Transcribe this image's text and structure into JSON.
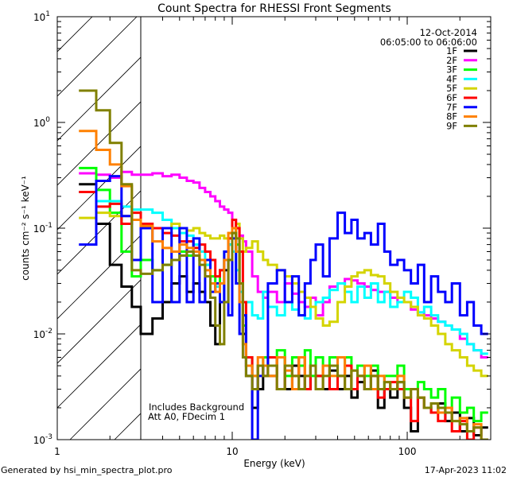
{
  "chart_data": {
    "type": "line",
    "title": "Count Spectra for RHESSI Front Segments",
    "xlabel": "Energy (keV)",
    "ylabel": "counts cm⁻² s⁻¹ keV⁻¹",
    "xscale": "log",
    "yscale": "log",
    "xlim": [
      1,
      300
    ],
    "ylim": [
      0.001,
      10
    ],
    "x_tick_labels": [
      "1",
      "10",
      "100"
    ],
    "y_tick_labels": [
      {
        "base": "10",
        "exp": "1"
      },
      {
        "base": "10",
        "exp": "0"
      },
      {
        "base": "10",
        "exp": "-1"
      },
      {
        "base": "10",
        "exp": "-2"
      },
      {
        "base": "10",
        "exp": "-3"
      }
    ],
    "legend_position": "top-right",
    "legend_header": [
      "12-Oct-2014",
      "06:05:00 to 06:06:00"
    ],
    "annotations": [
      "Includes Background",
      "Att A0, FDecim 1"
    ],
    "hatched_region_keV": [
      1,
      3
    ],
    "energy_edges": [
      1.33,
      1.67,
      2,
      2.33,
      2.67,
      3,
      3.5,
      4,
      4.5,
      5,
      5.5,
      6,
      6.5,
      7,
      7.5,
      8,
      8.5,
      9,
      9.5,
      10,
      10.5,
      11,
      11.5,
      12,
      13,
      14,
      15,
      16,
      18,
      20,
      22,
      24,
      26,
      28,
      30,
      33,
      36,
      40,
      44,
      48,
      52,
      57,
      62,
      68,
      74,
      80,
      88,
      96,
      105,
      115,
      125,
      137,
      150,
      165,
      180,
      200,
      220,
      240,
      265,
      290
    ],
    "series": [
      {
        "name": "1F",
        "color": "#000000",
        "values": [
          0.26,
          0.11,
          0.045,
          0.028,
          0.018,
          0.01,
          0.014,
          0.02,
          0.03,
          0.035,
          0.025,
          0.03,
          0.025,
          0.02,
          0.012,
          0.008,
          0.02,
          0.04,
          0.07,
          0.09,
          0.06,
          0.03,
          0.01,
          0.004,
          0.002,
          0.003,
          0.005,
          0.004,
          0.006,
          0.003,
          0.005,
          0.004,
          0.003,
          0.005,
          0.004,
          0.003,
          0.0045,
          0.003,
          0.004,
          0.0025,
          0.0035,
          0.003,
          0.0045,
          0.002,
          0.003,
          0.0025,
          0.0035,
          0.002,
          0.0012,
          0.0025,
          0.002,
          0.0018,
          0.0022,
          0.0015,
          0.0018,
          0.0012,
          0.0016,
          0.0011,
          0.0013
        ]
      },
      {
        "name": "2F",
        "color": "#ff00ff",
        "values": [
          0.33,
          0.32,
          0.3,
          0.34,
          0.32,
          0.32,
          0.33,
          0.31,
          0.32,
          0.3,
          0.28,
          0.27,
          0.24,
          0.22,
          0.2,
          0.18,
          0.16,
          0.15,
          0.14,
          0.12,
          0.1,
          0.085,
          0.075,
          0.06,
          0.035,
          0.025,
          0.022,
          0.025,
          0.02,
          0.03,
          0.024,
          0.02,
          0.018,
          0.022,
          0.015,
          0.02,
          0.028,
          0.03,
          0.033,
          0.032,
          0.03,
          0.028,
          0.026,
          0.025,
          0.025,
          0.022,
          0.02,
          0.02,
          0.017,
          0.016,
          0.015,
          0.014,
          0.013,
          0.012,
          0.011,
          0.009,
          0.008,
          0.007,
          0.006
        ]
      },
      {
        "name": "3F",
        "color": "#00ff00",
        "values": [
          0.37,
          0.23,
          0.14,
          0.06,
          0.035,
          0.05,
          0.04,
          0.045,
          0.05,
          0.06,
          0.055,
          0.06,
          0.05,
          0.045,
          0.035,
          0.03,
          0.04,
          0.06,
          0.08,
          0.1,
          0.07,
          0.03,
          0.012,
          0.006,
          0.004,
          0.005,
          0.006,
          0.005,
          0.007,
          0.004,
          0.006,
          0.005,
          0.007,
          0.004,
          0.006,
          0.005,
          0.006,
          0.004,
          0.006,
          0.003,
          0.005,
          0.004,
          0.005,
          0.003,
          0.004,
          0.004,
          0.005,
          0.003,
          0.003,
          0.0035,
          0.003,
          0.0025,
          0.003,
          0.002,
          0.0025,
          0.0018,
          0.002,
          0.0015,
          0.0018
        ]
      },
      {
        "name": "4F",
        "color": "#00ffff",
        "values": [
          0.22,
          0.18,
          0.18,
          0.16,
          0.15,
          0.15,
          0.14,
          0.12,
          0.1,
          0.09,
          0.085,
          0.07,
          0.06,
          0.045,
          0.03,
          0.028,
          0.02,
          0.05,
          0.07,
          0.06,
          0.04,
          0.025,
          0.02,
          0.02,
          0.015,
          0.014,
          0.025,
          0.018,
          0.015,
          0.02,
          0.017,
          0.015,
          0.014,
          0.018,
          0.02,
          0.022,
          0.026,
          0.03,
          0.025,
          0.02,
          0.028,
          0.022,
          0.03,
          0.02,
          0.025,
          0.018,
          0.02,
          0.025,
          0.022,
          0.016,
          0.018,
          0.015,
          0.013,
          0.012,
          0.011,
          0.01,
          0.008,
          0.007,
          0.0065
        ]
      },
      {
        "name": "5F",
        "color": "#d4d400",
        "values": [
          0.125,
          0.14,
          0.13,
          0.13,
          0.12,
          0.11,
          0.1,
          0.1,
          0.11,
          0.1,
          0.095,
          0.1,
          0.09,
          0.085,
          0.08,
          0.08,
          0.085,
          0.08,
          0.09,
          0.1,
          0.11,
          0.08,
          0.06,
          0.065,
          0.075,
          0.06,
          0.05,
          0.045,
          0.04,
          0.035,
          0.03,
          0.025,
          0.022,
          0.018,
          0.014,
          0.012,
          0.013,
          0.02,
          0.028,
          0.035,
          0.038,
          0.04,
          0.036,
          0.035,
          0.03,
          0.025,
          0.022,
          0.02,
          0.018,
          0.015,
          0.014,
          0.012,
          0.01,
          0.008,
          0.007,
          0.006,
          0.005,
          0.0045,
          0.004
        ]
      },
      {
        "name": "6F",
        "color": "#ff0000",
        "values": [
          0.22,
          0.16,
          0.17,
          0.11,
          0.14,
          0.11,
          0.1,
          0.09,
          0.085,
          0.075,
          0.075,
          0.065,
          0.07,
          0.06,
          0.05,
          0.035,
          0.04,
          0.05,
          0.08,
          0.12,
          0.1,
          0.06,
          0.02,
          0.006,
          0.003,
          0.005,
          0.004,
          0.006,
          0.003,
          0.005,
          0.004,
          0.006,
          0.003,
          0.005,
          0.004,
          0.005,
          0.003,
          0.004,
          0.005,
          0.003,
          0.004,
          0.003,
          0.004,
          0.0025,
          0.003,
          0.0035,
          0.003,
          0.0025,
          0.0015,
          0.0025,
          0.002,
          0.0018,
          0.0015,
          0.002,
          0.0012,
          0.0015,
          0.001,
          0.0013,
          0.001
        ]
      },
      {
        "name": "7F",
        "color": "#0000ff",
        "values": [
          0.07,
          0.28,
          0.31,
          0.13,
          0.05,
          0.1,
          0.02,
          0.1,
          0.02,
          0.1,
          0.02,
          0.08,
          0.02,
          0.05,
          0.025,
          0.03,
          0.02,
          0.06,
          0.015,
          0.08,
          0.03,
          0.01,
          0.015,
          0.005,
          0.001,
          0.004,
          0.005,
          0.03,
          0.04,
          0.02,
          0.035,
          0.015,
          0.03,
          0.05,
          0.07,
          0.035,
          0.08,
          0.14,
          0.09,
          0.12,
          0.08,
          0.09,
          0.07,
          0.11,
          0.06,
          0.045,
          0.05,
          0.04,
          0.03,
          0.045,
          0.02,
          0.035,
          0.025,
          0.02,
          0.03,
          0.015,
          0.02,
          0.012,
          0.01
        ]
      },
      {
        "name": "8F",
        "color": "#ff8000",
        "values": [
          0.83,
          0.55,
          0.4,
          0.25,
          0.12,
          0.105,
          0.075,
          0.065,
          0.06,
          0.07,
          0.065,
          0.06,
          0.05,
          0.04,
          0.03,
          0.025,
          0.03,
          0.05,
          0.09,
          0.1,
          0.06,
          0.02,
          0.008,
          0.005,
          0.004,
          0.006,
          0.005,
          0.004,
          0.006,
          0.0045,
          0.003,
          0.006,
          0.004,
          0.005,
          0.003,
          0.005,
          0.004,
          0.006,
          0.003,
          0.0045,
          0.004,
          0.005,
          0.003,
          0.004,
          0.0035,
          0.003,
          0.004,
          0.0025,
          0.003,
          0.0025,
          0.002,
          0.0022,
          0.0018,
          0.002,
          0.0015,
          0.0016,
          0.0012,
          0.0014,
          0.001
        ]
      },
      {
        "name": "9F",
        "color": "#808000",
        "values": [
          2.0,
          1.3,
          0.64,
          0.26,
          0.04,
          0.037,
          0.04,
          0.045,
          0.05,
          0.055,
          0.06,
          0.055,
          0.045,
          0.035,
          0.022,
          0.012,
          0.008,
          0.02,
          0.05,
          0.09,
          0.08,
          0.03,
          0.006,
          0.004,
          0.003,
          0.005,
          0.004,
          0.005,
          0.003,
          0.005,
          0.004,
          0.003,
          0.004,
          0.005,
          0.003,
          0.004,
          0.005,
          0.004,
          0.003,
          0.0045,
          0.004,
          0.003,
          0.004,
          0.003,
          0.0035,
          0.003,
          0.0035,
          0.0025,
          0.003,
          0.0025,
          0.002,
          0.0022,
          0.002,
          0.0018,
          0.0015,
          0.0014,
          0.0012,
          0.0013,
          0.001
        ]
      }
    ]
  },
  "footer": {
    "generated_by": "Generated by hsi_min_spectra_plot.pro",
    "timestamp": "17-Apr-2023 11:02"
  }
}
